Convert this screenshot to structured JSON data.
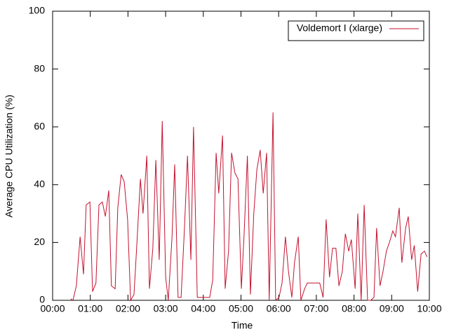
{
  "chart_data": {
    "type": "line",
    "xlabel": "Time",
    "ylabel": "Average CPU Utilization (%)",
    "xlim": [
      0,
      10
    ],
    "ylim": [
      0,
      100
    ],
    "xticks": [
      {
        "value": 0,
        "label": "00:00"
      },
      {
        "value": 1,
        "label": "01:00"
      },
      {
        "value": 2,
        "label": "02:00"
      },
      {
        "value": 3,
        "label": "03:00"
      },
      {
        "value": 4,
        "label": "04:00"
      },
      {
        "value": 5,
        "label": "05:00"
      },
      {
        "value": 6,
        "label": "06:00"
      },
      {
        "value": 7,
        "label": "07:00"
      },
      {
        "value": 8,
        "label": "08:00"
      },
      {
        "value": 9,
        "label": "09:00"
      },
      {
        "value": 10,
        "label": "10:00"
      }
    ],
    "yticks": [
      0,
      20,
      40,
      60,
      80,
      100
    ],
    "legend": "top-right",
    "x": [
      0.48,
      0.54,
      0.63,
      0.73,
      0.82,
      0.89,
      0.99,
      1.06,
      1.15,
      1.23,
      1.32,
      1.4,
      1.49,
      1.56,
      1.66,
      1.73,
      1.82,
      1.9,
      1.99,
      2.07,
      2.16,
      2.23,
      2.33,
      2.4,
      2.5,
      2.57,
      2.66,
      2.74,
      2.83,
      2.91,
      3.0,
      3.07,
      3.17,
      3.24,
      3.33,
      3.41,
      3.5,
      3.58,
      3.67,
      3.74,
      3.84,
      3.91,
      4.0,
      4.08,
      4.17,
      4.25,
      4.34,
      4.41,
      4.51,
      4.58,
      4.67,
      4.75,
      4.84,
      4.92,
      5.01,
      5.08,
      5.17,
      5.25,
      5.34,
      5.42,
      5.51,
      5.59,
      5.68,
      5.75,
      5.85,
      5.92,
      6.01,
      6.09,
      6.18,
      6.26,
      6.35,
      6.42,
      6.52,
      6.59,
      6.69,
      6.76,
      6.85,
      6.93,
      7.02,
      7.09,
      7.18,
      7.26,
      7.35,
      7.43,
      7.52,
      7.6,
      7.69,
      7.77,
      7.86,
      7.93,
      8.03,
      8.1,
      8.19,
      8.27,
      8.36,
      8.44,
      8.53,
      8.6,
      8.69,
      8.77,
      8.86,
      8.94,
      9.03,
      9.1,
      9.2,
      9.27,
      9.37,
      9.44,
      9.53,
      9.6,
      9.69,
      9.78,
      9.87,
      9.94
    ],
    "series": [
      {
        "name": "Voldemort I (xlarge)",
        "color": "#c4122f",
        "values": [
          0.5,
          0,
          5,
          22,
          9,
          33,
          34,
          3,
          6,
          33,
          34,
          29,
          38,
          5,
          4,
          32,
          43.5,
          41,
          28,
          0,
          2,
          18,
          42,
          30,
          50,
          4,
          18,
          48.5,
          14,
          62,
          8,
          0,
          22,
          47,
          1,
          1,
          25,
          50,
          14,
          60,
          1,
          1,
          1,
          1,
          1,
          7,
          51,
          37,
          57,
          4,
          17,
          51,
          44,
          42,
          4,
          22,
          50,
          2,
          30,
          45,
          52,
          37,
          51,
          0,
          65,
          0,
          1,
          6,
          22,
          10,
          1,
          13,
          22,
          0,
          4,
          6,
          6,
          6,
          6,
          6,
          1,
          28,
          8,
          18,
          18,
          5,
          10,
          23,
          17,
          21,
          4,
          30,
          0,
          33,
          0,
          0,
          1,
          25,
          5,
          10,
          17,
          20,
          24,
          22,
          32,
          13,
          25,
          29,
          14,
          19,
          3,
          16,
          17,
          15
        ]
      }
    ]
  }
}
